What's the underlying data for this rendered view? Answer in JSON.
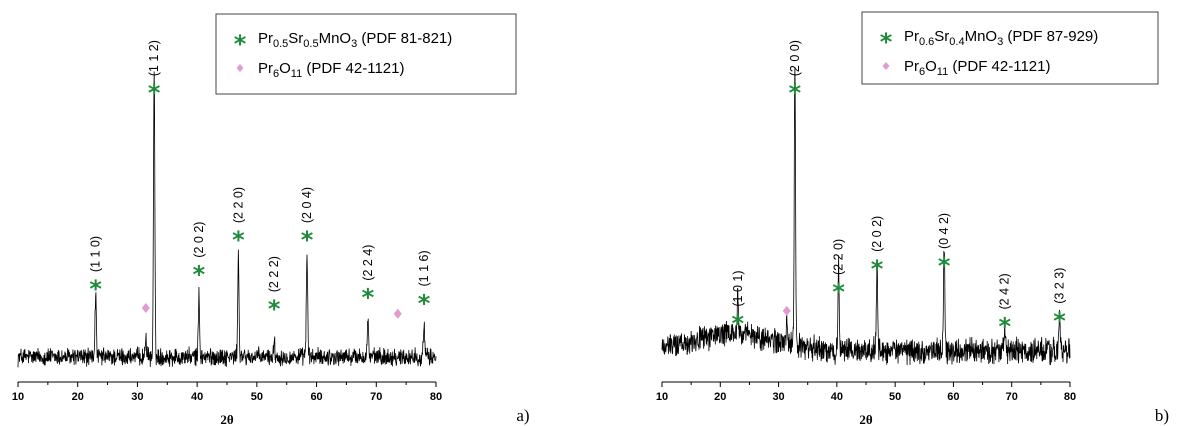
{
  "colors": {
    "star": "#1e8a3a",
    "diamond": "#e29bd2",
    "trace": "#000000"
  },
  "chart_data": [
    {
      "type": "line",
      "panel_label": "a)",
      "xlabel": "2θ",
      "ylabel": "",
      "xlim": [
        10,
        80
      ],
      "x_ticks": [
        "10",
        "20",
        "30",
        "40",
        "50",
        "60",
        "70",
        "80"
      ],
      "grid": false,
      "legend_placement": "top-right",
      "legend": [
        {
          "marker": "star",
          "parts": [
            [
              "Pr",
              ""
            ],
            [
              "0.5",
              "sub"
            ],
            [
              "Sr",
              ""
            ],
            [
              "0.5",
              "sub"
            ],
            [
              "MnO",
              ""
            ],
            [
              "3",
              "sub"
            ],
            [
              " (PDF 81-821)",
              ""
            ]
          ]
        },
        {
          "marker": "diamond",
          "parts": [
            [
              "Pr",
              ""
            ],
            [
              "6",
              "sub"
            ],
            [
              "O",
              ""
            ],
            [
              "11",
              "sub"
            ],
            [
              " (PDF 42-1121)",
              ""
            ]
          ]
        }
      ],
      "baseline": 0.08,
      "noise": 0.025,
      "peaks": [
        {
          "x": 23.0,
          "h": 0.22,
          "w": 0.28,
          "hkl": "(1 1 0)",
          "marker": "star",
          "mh": 0.34
        },
        {
          "x": 31.4,
          "h": 0.08,
          "w": 0.25,
          "marker": "diamond",
          "mh": 0.25
        },
        {
          "x": 32.8,
          "h": 1.0,
          "w": 0.28,
          "hkl": "(1 1 2)",
          "marker": "star",
          "mh": 1.02
        },
        {
          "x": 40.3,
          "h": 0.21,
          "w": 0.28,
          "hkl": "(2 0 2)",
          "marker": "star",
          "mh": 0.39
        },
        {
          "x": 46.9,
          "h": 0.35,
          "w": 0.28,
          "hkl": "(2 2 0)",
          "marker": "star",
          "mh": 0.51
        },
        {
          "x": 52.9,
          "h": 0.06,
          "w": 0.25,
          "hkl": "(2 2 2)",
          "marker": "star",
          "mh": 0.27
        },
        {
          "x": 58.4,
          "h": 0.35,
          "w": 0.3,
          "hkl": "(2 0 4)",
          "marker": "star",
          "mh": 0.51
        },
        {
          "x": 68.6,
          "h": 0.12,
          "w": 0.3,
          "hkl": "(2 2 4)",
          "marker": "star",
          "mh": 0.31
        },
        {
          "x": 73.6,
          "h": 0.0,
          "w": 0.25,
          "marker": "diamond",
          "mh": 0.23
        },
        {
          "x": 78.0,
          "h": 0.1,
          "w": 0.3,
          "hkl": "(1 1 6)",
          "marker": "star",
          "mh": 0.29
        }
      ]
    },
    {
      "type": "line",
      "panel_label": "b)",
      "xlabel": "2θ",
      "ylabel": "",
      "xlim": [
        10,
        80
      ],
      "x_ticks": [
        "10",
        "20",
        "30",
        "40",
        "50",
        "60",
        "70",
        "80"
      ],
      "grid": false,
      "legend_placement": "top-right",
      "legend": [
        {
          "marker": "star",
          "parts": [
            [
              "Pr",
              ""
            ],
            [
              "0.6",
              "sub"
            ],
            [
              "Sr",
              ""
            ],
            [
              "0.4",
              "sub"
            ],
            [
              "MnO",
              ""
            ],
            [
              "3",
              "sub"
            ],
            [
              " (PDF 87-929)",
              ""
            ]
          ]
        },
        {
          "marker": "diamond",
          "parts": [
            [
              "Pr",
              ""
            ],
            [
              "6",
              "sub"
            ],
            [
              "O",
              ""
            ],
            [
              "11",
              "sub"
            ],
            [
              " (PDF 42-1121)",
              ""
            ]
          ]
        }
      ],
      "baseline": 0.1,
      "noise": 0.035,
      "slope_bump": 0.06,
      "peaks": [
        {
          "x": 23.0,
          "h": 0.14,
          "w": 0.28,
          "hkl": "(1 0 1)",
          "marker": "star",
          "mh": 0.22
        },
        {
          "x": 31.4,
          "h": 0.1,
          "w": 0.25,
          "marker": "diamond",
          "mh": 0.24
        },
        {
          "x": 32.8,
          "h": 1.0,
          "w": 0.28,
          "hkl": "(2 0 0)",
          "marker": "star",
          "mh": 1.02
        },
        {
          "x": 40.3,
          "h": 0.28,
          "w": 0.28,
          "hkl": "(2 2 0)",
          "marker": "star",
          "mh": 0.33
        },
        {
          "x": 46.9,
          "h": 0.33,
          "w": 0.28,
          "hkl": "(2 0 2)",
          "marker": "star",
          "mh": 0.41
        },
        {
          "x": 58.4,
          "h": 0.35,
          "w": 0.3,
          "hkl": "(0 4 2)",
          "marker": "star",
          "mh": 0.42
        },
        {
          "x": 68.8,
          "h": 0.08,
          "w": 0.3,
          "hkl": "(2 4 2)",
          "marker": "star",
          "mh": 0.21
        },
        {
          "x": 78.2,
          "h": 0.12,
          "w": 0.3,
          "hkl": "(3 2 3)",
          "marker": "star",
          "mh": 0.23
        }
      ]
    }
  ]
}
